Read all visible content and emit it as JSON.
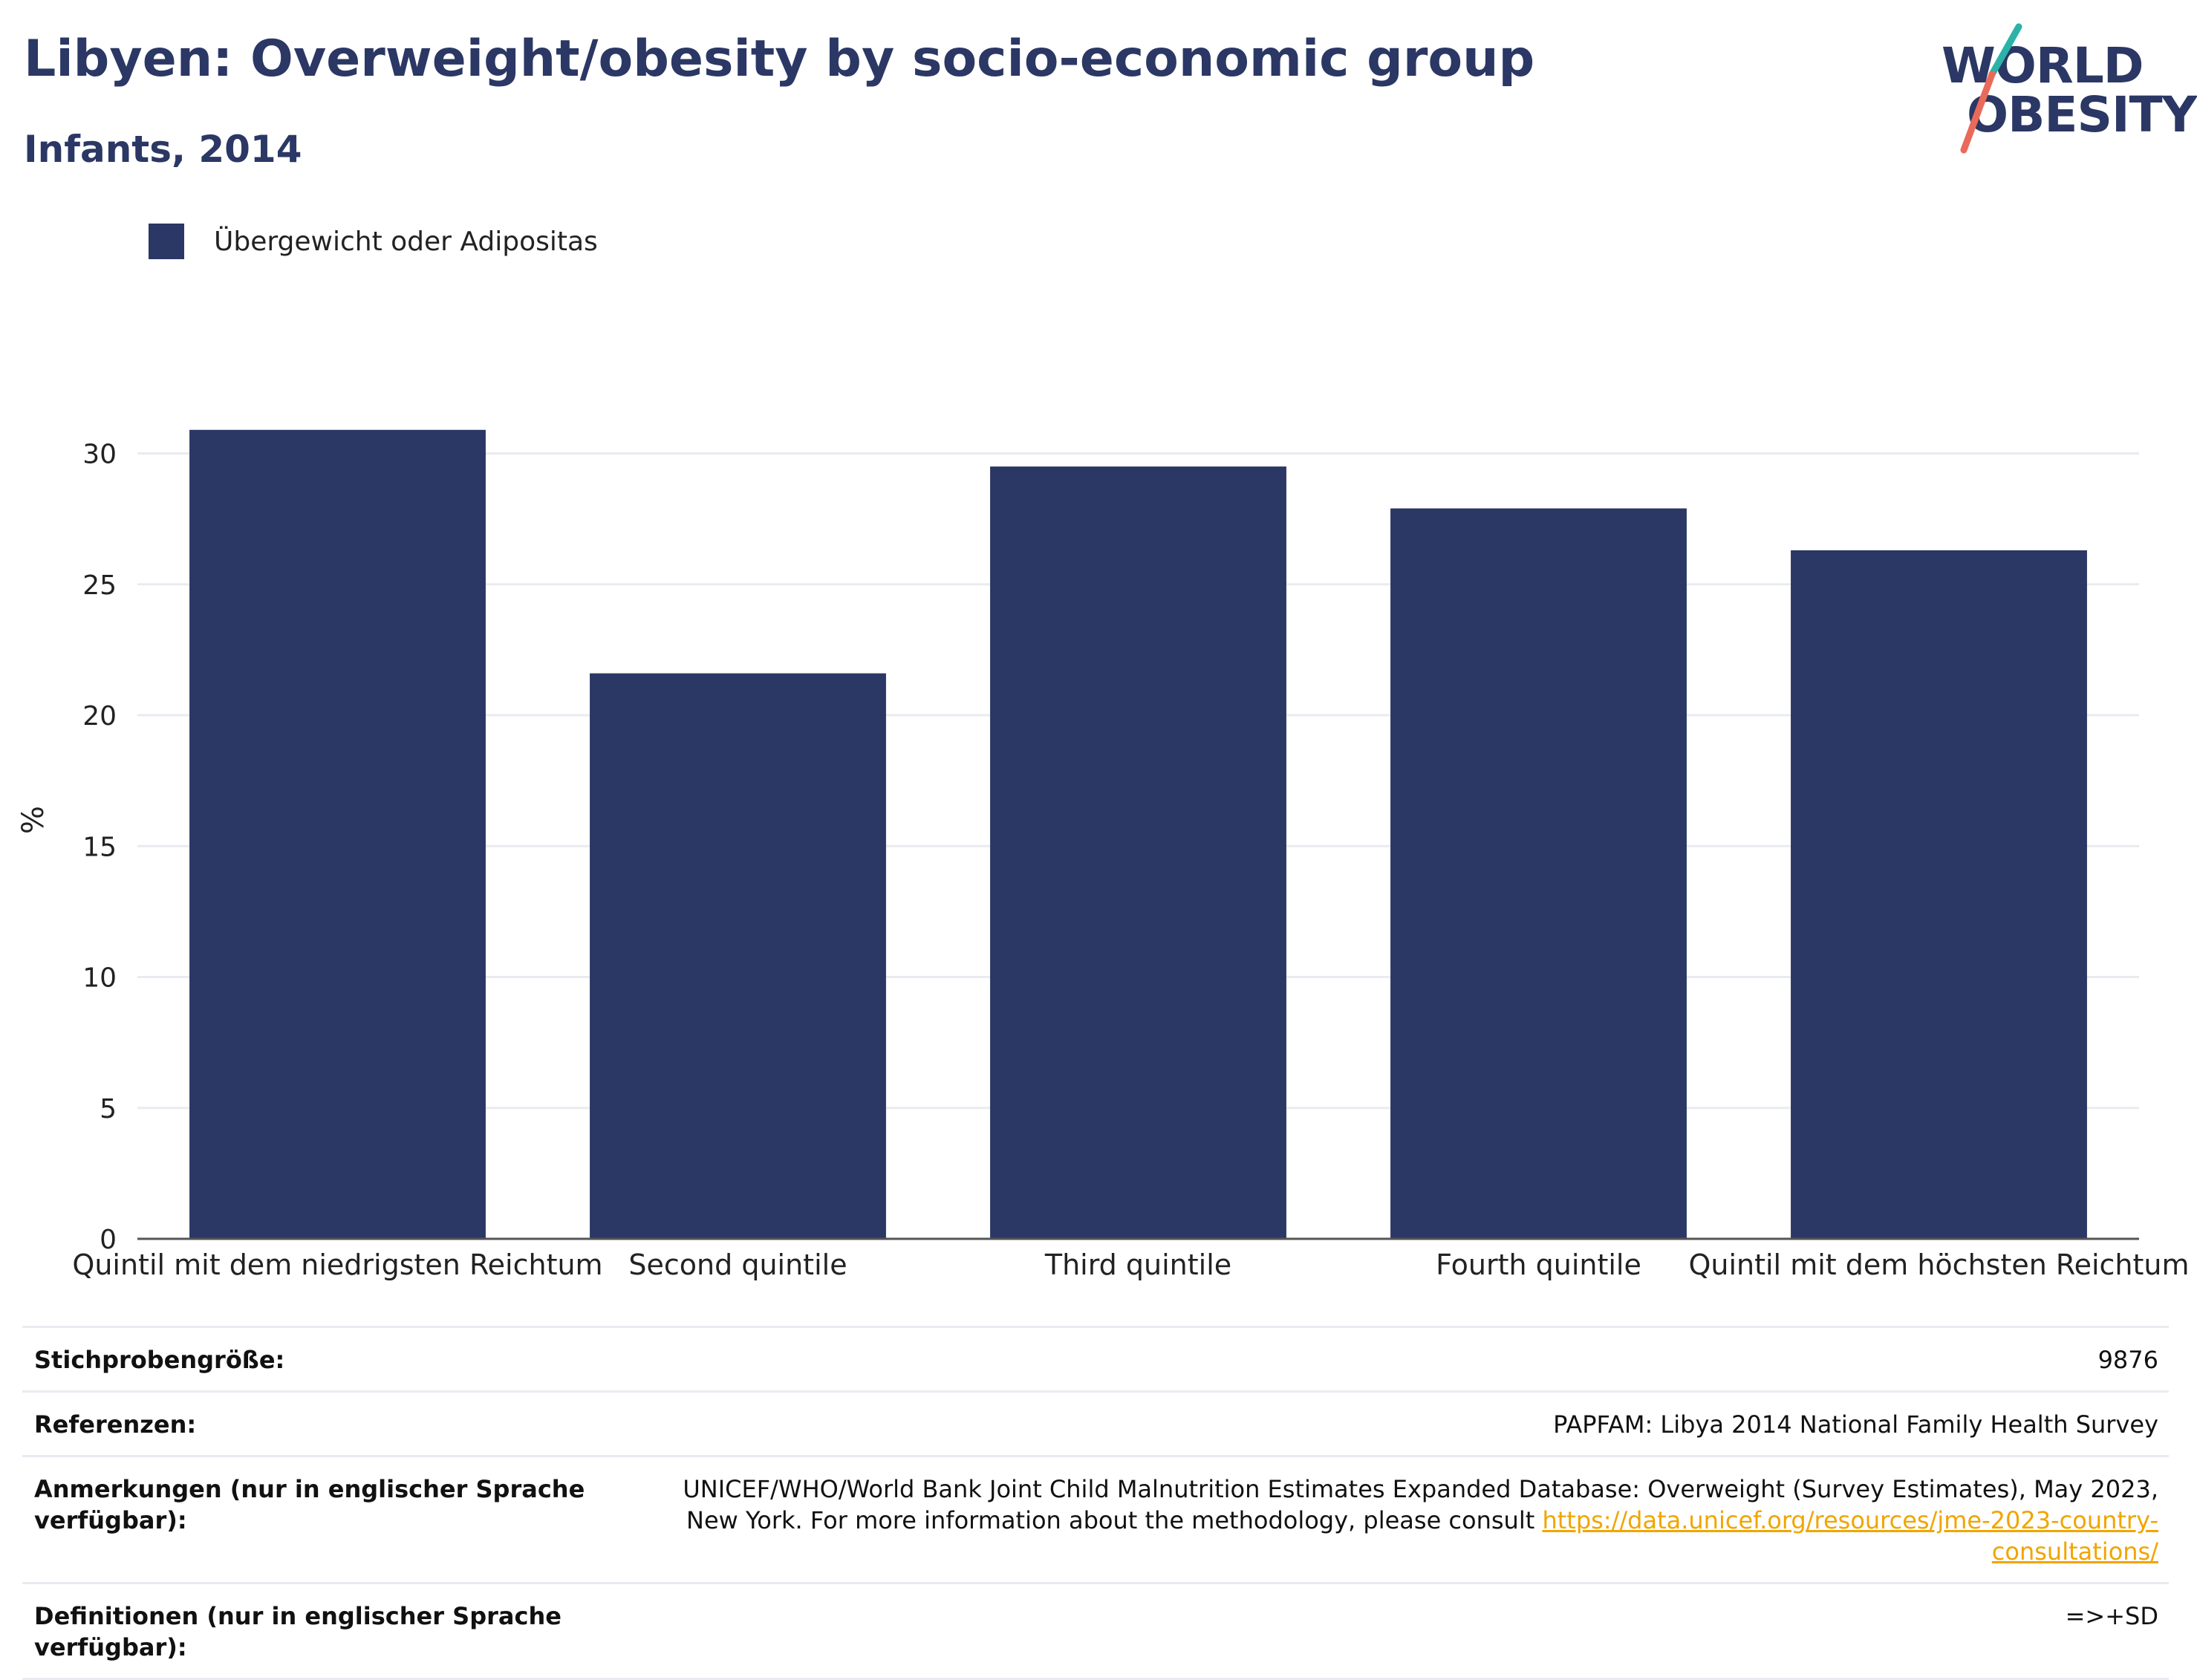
{
  "header": {
    "title": "Libyen: Overweight/obesity by socio-economic group",
    "subtitle": "Infants, 2014"
  },
  "logo": {
    "line1": "WORLD",
    "line2": "OBESITY",
    "colors": {
      "text": "#2b3764",
      "slash_top": "#2bb3a8",
      "slash_bottom": "#ea6a5a"
    }
  },
  "legend": {
    "items": [
      {
        "label": "Übergewicht oder Adipositas",
        "color": "#2b3764"
      }
    ]
  },
  "chart_data": {
    "type": "bar",
    "categories": [
      "Quintil mit dem niedrigsten Reichtum",
      "Second quintile",
      "Third quintile",
      "Fourth quintile",
      "Quintil mit dem höchsten Reichtum"
    ],
    "series": [
      {
        "name": "Übergewicht oder Adipositas",
        "values": [
          30.9,
          21.6,
          29.5,
          27.9,
          26.3
        ],
        "color": "#2b3764"
      }
    ],
    "ylabel": "%",
    "xlabel": "",
    "ylim": [
      0,
      32
    ],
    "yticks": [
      0,
      5,
      10,
      15,
      20,
      25,
      30
    ],
    "grid": true,
    "legend_position": "top-left"
  },
  "table": {
    "rows": [
      {
        "label": "Stichprobengröße:",
        "value": "9876"
      },
      {
        "label": "Referenzen:",
        "value": "PAPFAM: Libya 2014 National Family Health Survey"
      },
      {
        "label": "Anmerkungen (nur in englischer Sprache verfügbar):",
        "value": "UNICEF/WHO/World Bank Joint Child Malnutrition Estimates Expanded Database: Overweight (Survey Estimates), May 2023, New York. For more information about the methodology, please consult ",
        "link": "https://data.unicef.org/resources/jme-2023-country-consultations/"
      },
      {
        "label": "Definitionen (nur in englischer Sprache verfügbar):",
        "value": "=>+SD"
      }
    ]
  }
}
